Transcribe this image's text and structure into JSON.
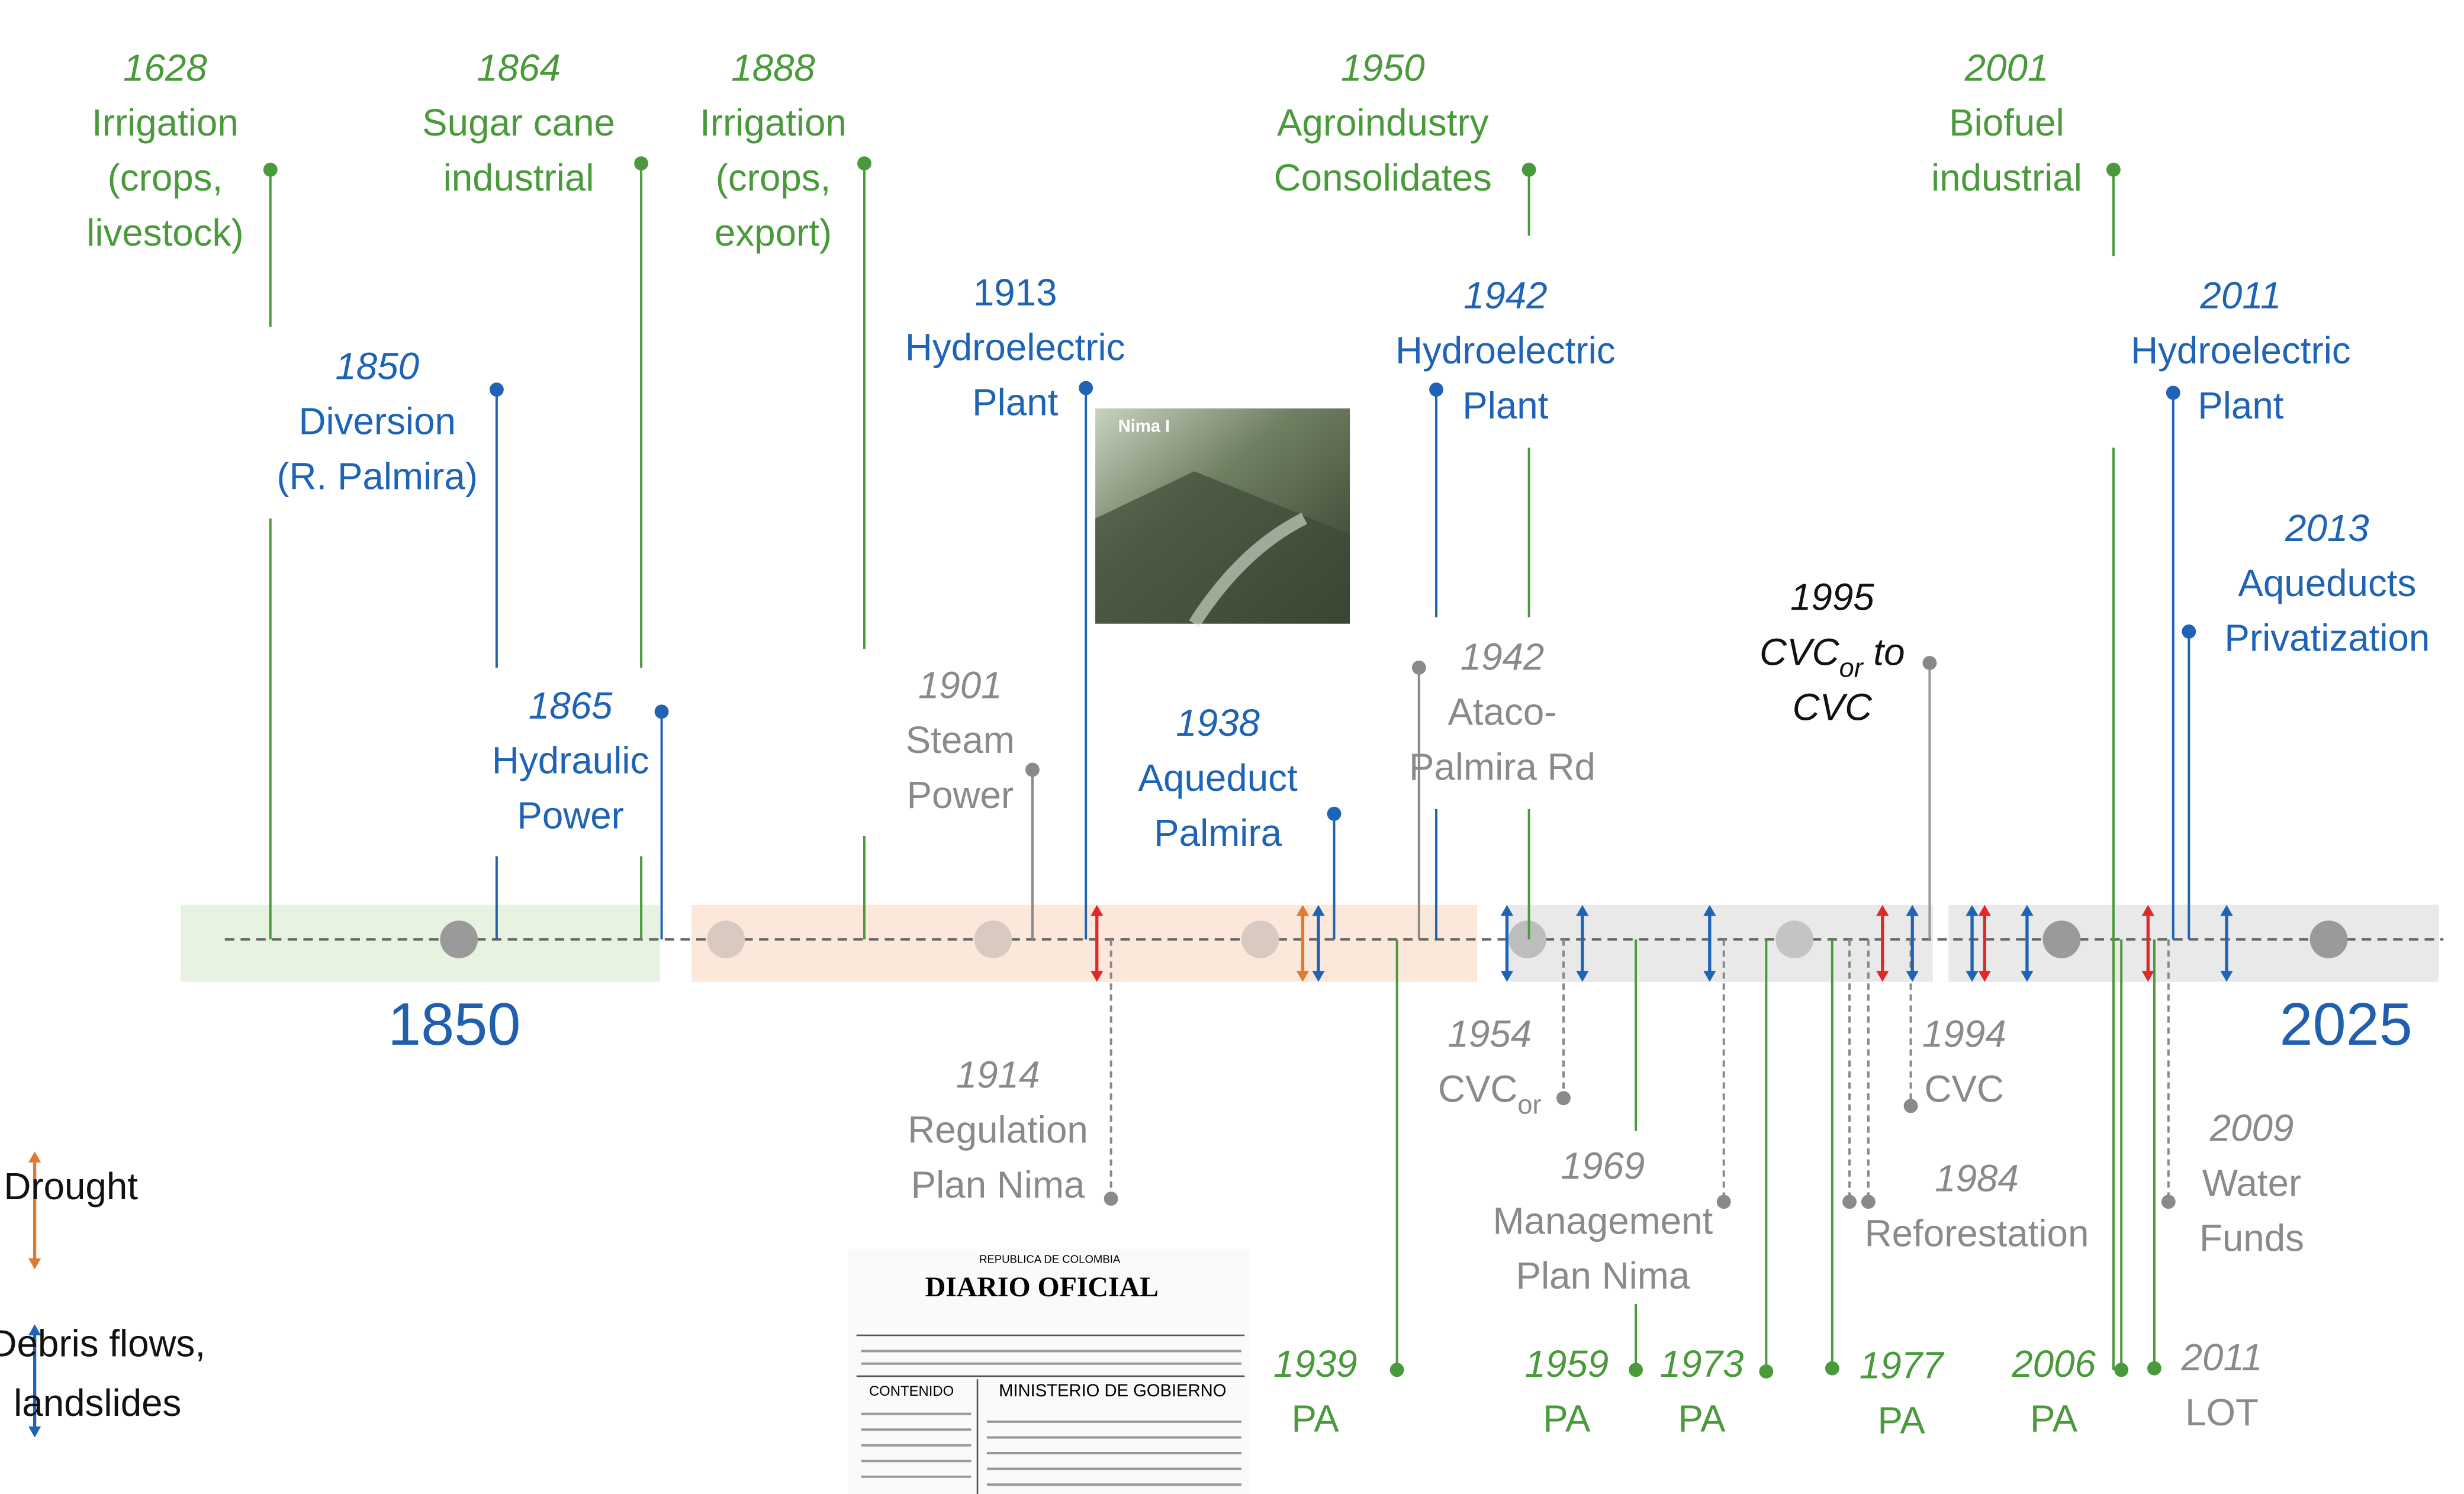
{
  "axis_labels": [
    "1850",
    "2025"
  ],
  "legend": [
    {
      "label": [
        "Drought"
      ]
    },
    {
      "label": [
        "Debris flows,",
        "landslides"
      ]
    }
  ],
  "photo": {
    "caption": "Nima I"
  },
  "newspaper": {
    "header": "REPUBLICA DE COLOMBIA",
    "title": "DIARIO OFICIAL",
    "section": "CONTENIDO",
    "ministry": "MINISTERIO DE GOBIERNO"
  },
  "events": [
    {
      "year": "1628",
      "label": [
        "Irrigation",
        "(crops,",
        "livestock)"
      ]
    },
    {
      "year": "1864",
      "label": [
        "Sugar cane",
        "industrial"
      ]
    },
    {
      "year": "1888",
      "label": [
        "Irrigation",
        "(crops,",
        "export)"
      ]
    },
    {
      "year": "1950",
      "label": [
        "Agroindustry",
        "Consolidates"
      ]
    },
    {
      "year": "2001",
      "label": [
        "Biofuel",
        "industrial"
      ]
    },
    {
      "year": "1850",
      "label": [
        "Diversion",
        "(R. Palmira)"
      ]
    },
    {
      "year": "1913",
      "label": [
        "Hydroelectric",
        "Plant"
      ]
    },
    {
      "year": "1942",
      "label": [
        "Hydroelectric",
        "Plant"
      ]
    },
    {
      "year": "2011",
      "label": [
        "Hydroelectric",
        "Plant"
      ]
    },
    {
      "year": "2013",
      "label": [
        "Aqueducts",
        "Privatization"
      ]
    },
    {
      "year": "1865",
      "label": [
        "Hydraulic",
        "Power"
      ]
    },
    {
      "year": "1938",
      "label": [
        "Aqueduct",
        "Palmira"
      ]
    },
    {
      "year": "1901",
      "label": [
        "Steam",
        "Power"
      ]
    },
    {
      "year": "1942",
      "label": [
        "Ataco-",
        "Palmira Rd"
      ]
    },
    {
      "year": "1995",
      "label_parts": [
        "CVC",
        "or",
        " to"
      ],
      "label": [
        "CVC"
      ]
    },
    {
      "year": "1914",
      "label": [
        "Regulation",
        "Plan Nima"
      ]
    },
    {
      "year": "1954",
      "label_parts": [
        "CVC",
        "or"
      ],
      "label": []
    },
    {
      "year": "1969",
      "label": [
        "Management",
        "Plan Nima"
      ]
    },
    {
      "year": "1994",
      "label": [
        "CVC"
      ]
    },
    {
      "year": "1984",
      "label": [
        "Reforestation"
      ]
    },
    {
      "year": "2009",
      "label": [
        "Water",
        "Funds"
      ]
    },
    {
      "year": "2011",
      "label": [
        "LOT"
      ]
    },
    {
      "year": "1939",
      "label": [
        "PA"
      ]
    },
    {
      "year": "1959",
      "label": [
        "PA"
      ]
    },
    {
      "year": "1973",
      "label": [
        "PA"
      ]
    },
    {
      "year": "1977",
      "label": [
        "PA"
      ]
    },
    {
      "year": "2006",
      "label": [
        "PA"
      ]
    }
  ]
}
